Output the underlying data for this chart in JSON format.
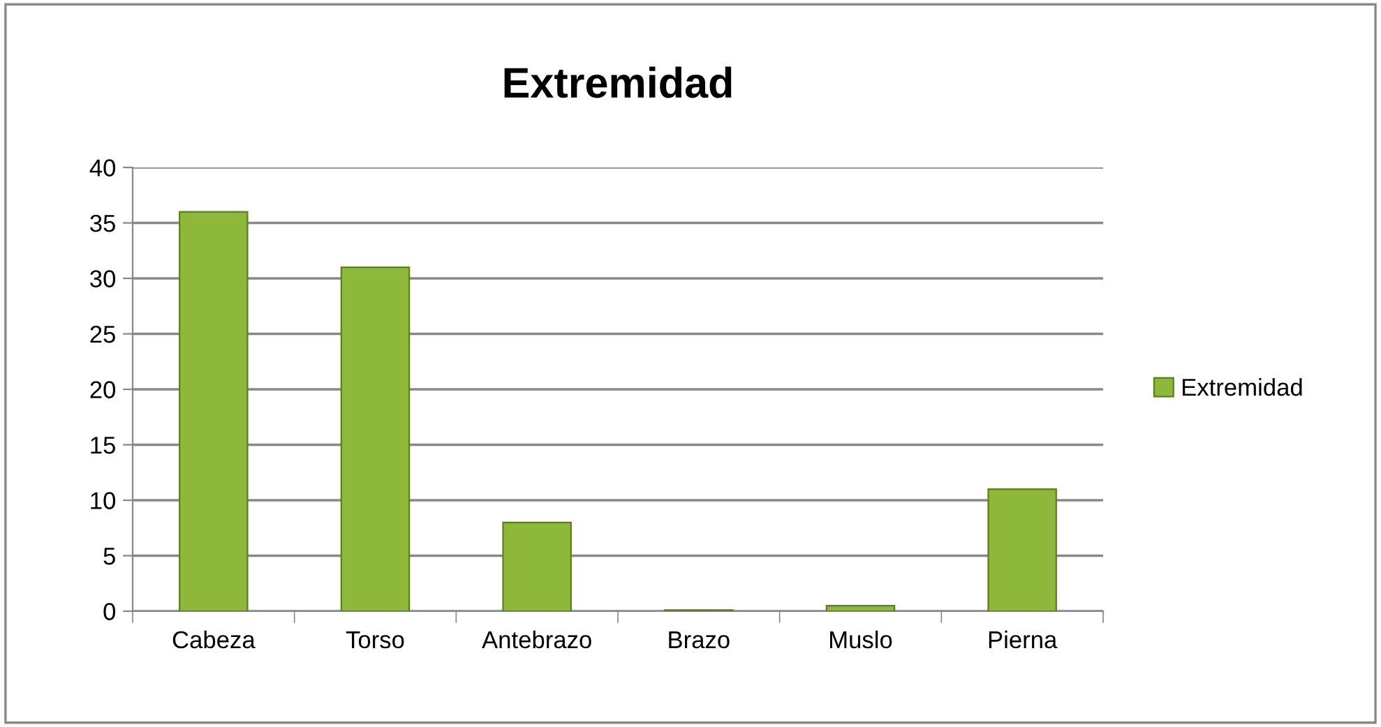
{
  "chart_data": {
    "type": "bar",
    "title": "Extremidad",
    "categories": [
      "Cabeza",
      "Torso",
      "Antebrazo",
      "Brazo",
      "Muslo",
      "Pierna"
    ],
    "series": [
      {
        "name": "Extremidad",
        "color": "#8db83a",
        "values": [
          36,
          31,
          8,
          0.1,
          0.5,
          11
        ]
      }
    ],
    "ylim": [
      0,
      40
    ],
    "yticks": [
      0,
      5,
      10,
      15,
      20,
      25,
      30,
      35,
      40
    ],
    "grid": "y",
    "legend": "right"
  }
}
